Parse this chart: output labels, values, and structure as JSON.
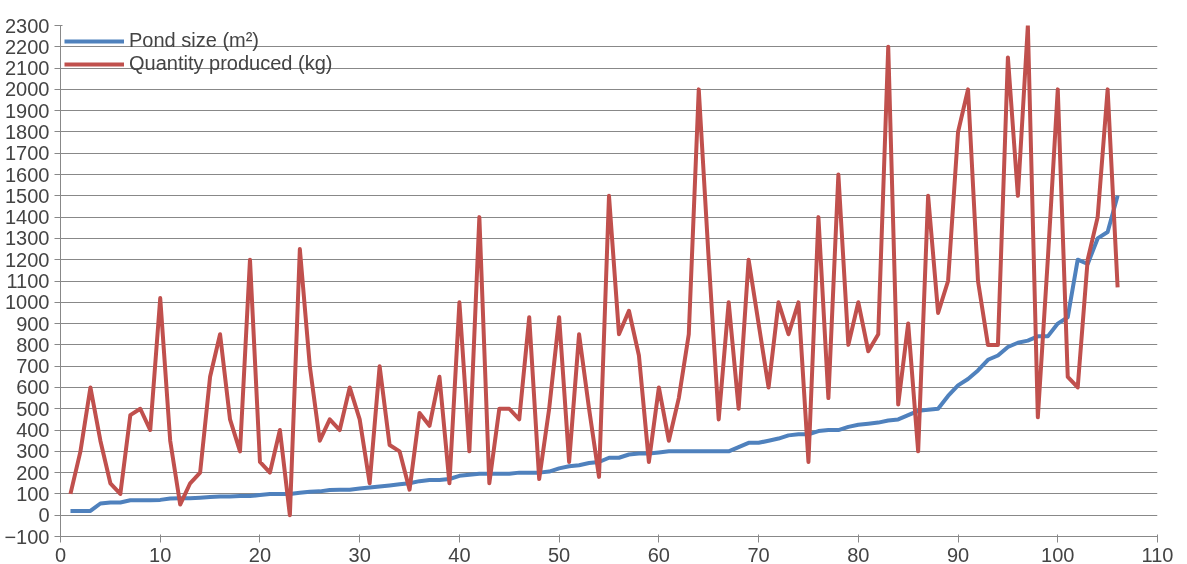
{
  "chart_data": {
    "type": "line",
    "x": [
      1,
      2,
      3,
      4,
      5,
      6,
      7,
      8,
      9,
      10,
      11,
      12,
      13,
      14,
      15,
      16,
      17,
      18,
      19,
      20,
      21,
      22,
      23,
      24,
      25,
      26,
      27,
      28,
      29,
      30,
      31,
      32,
      33,
      34,
      35,
      36,
      37,
      38,
      39,
      40,
      41,
      42,
      43,
      44,
      45,
      46,
      47,
      48,
      49,
      50,
      51,
      52,
      53,
      54,
      55,
      56,
      57,
      58,
      59,
      60,
      61,
      62,
      63,
      64,
      65,
      66,
      67,
      68,
      69,
      70,
      71,
      72,
      73,
      74,
      75,
      76,
      77,
      78,
      79,
      80,
      81,
      82,
      83,
      84,
      85,
      86,
      87,
      88,
      89,
      90,
      91,
      92,
      93,
      94,
      95,
      96,
      97,
      98,
      99,
      100,
      101,
      102,
      103,
      104,
      105,
      106
    ],
    "series": [
      {
        "name": "Pond size (m²)",
        "color": "#4f81bd",
        "values": [
          20,
          20,
          20,
          55,
          60,
          60,
          70,
          70,
          70,
          72,
          78,
          80,
          80,
          82,
          85,
          88,
          88,
          90,
          90,
          95,
          100,
          100,
          100,
          105,
          110,
          112,
          118,
          120,
          120,
          125,
          130,
          135,
          140,
          145,
          150,
          160,
          165,
          165,
          170,
          185,
          190,
          195,
          195,
          195,
          195,
          200,
          200,
          200,
          205,
          220,
          230,
          235,
          245,
          250,
          270,
          270,
          285,
          290,
          290,
          295,
          300,
          300,
          300,
          300,
          300,
          300,
          300,
          320,
          340,
          340,
          350,
          360,
          375,
          380,
          380,
          395,
          400,
          400,
          415,
          425,
          430,
          435,
          445,
          450,
          470,
          490,
          495,
          500,
          560,
          610,
          640,
          680,
          730,
          750,
          790,
          810,
          820,
          840,
          840,
          900,
          930,
          1200,
          1180,
          1300,
          1330,
          1500
        ]
      },
      {
        "name": "Quantity produced (kg)",
        "color": "#c0504d",
        "values": [
          100,
          300,
          600,
          350,
          150,
          100,
          470,
          500,
          400,
          1020,
          350,
          50,
          150,
          200,
          650,
          850,
          450,
          300,
          1200,
          250,
          200,
          400,
          0,
          1250,
          700,
          350,
          450,
          400,
          600,
          450,
          150,
          700,
          330,
          300,
          120,
          480,
          420,
          650,
          150,
          1000,
          300,
          1400,
          150,
          500,
          500,
          450,
          930,
          170,
          500,
          930,
          250,
          850,
          500,
          180,
          1500,
          850,
          960,
          750,
          250,
          600,
          350,
          550,
          850,
          2000,
          1200,
          450,
          1000,
          500,
          1200,
          900,
          600,
          1000,
          850,
          1000,
          250,
          1400,
          550,
          1600,
          800,
          1000,
          770,
          850,
          2200,
          520,
          900,
          300,
          1500,
          950,
          1100,
          1800,
          2000,
          1100,
          800,
          800,
          2150,
          1500,
          2300,
          460,
          1200,
          2000,
          650,
          600,
          1200,
          1400,
          2000,
          1070
        ]
      }
    ],
    "xlim": [
      0,
      110
    ],
    "xticks": [
      0,
      10,
      20,
      30,
      40,
      50,
      60,
      70,
      80,
      90,
      100,
      110
    ],
    "ylim": [
      -100,
      2300
    ],
    "yticks": [
      -100,
      0,
      100,
      200,
      300,
      400,
      500,
      600,
      700,
      800,
      900,
      1000,
      1100,
      1200,
      1300,
      1400,
      1500,
      1600,
      1700,
      1800,
      1900,
      2000,
      2100,
      2200,
      2300
    ],
    "grid": "y",
    "legend": "top left",
    "marker": "none",
    "line_style": "solid"
  }
}
